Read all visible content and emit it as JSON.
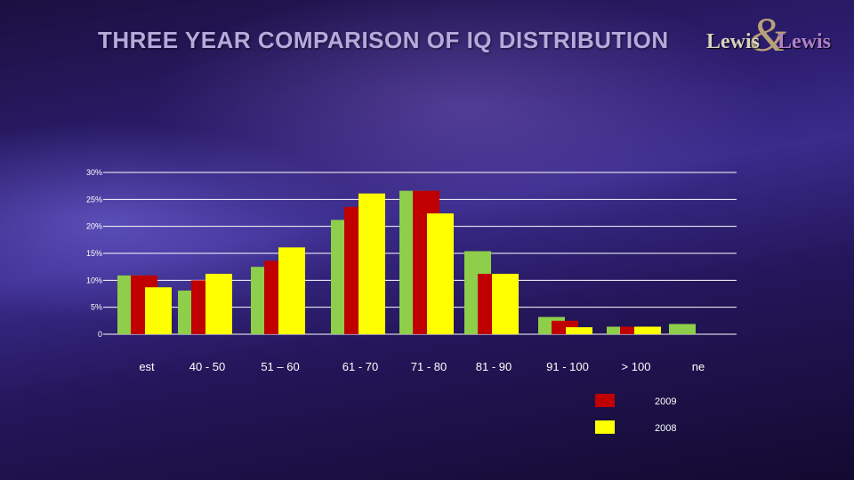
{
  "slide": {
    "title": "THREE YEAR COMPARISON OF IQ DISTRIBUTION",
    "logo": {
      "part1": "Lewis",
      "amp": "&",
      "part2": "Lewis"
    }
  },
  "colors": {
    "series_2010": "#8ece4a",
    "series_2009": "#c00000",
    "series_2008": "#ffff00",
    "gridline": "#ffffff"
  },
  "chart_data": {
    "type": "bar",
    "title": "",
    "xlabel": "",
    "ylabel": "",
    "ylim": [
      0,
      30
    ],
    "yticks": [
      {
        "value": 0,
        "label": "0"
      },
      {
        "value": 5,
        "label": "5%"
      },
      {
        "value": 10,
        "label": "10%"
      },
      {
        "value": 15,
        "label": "15%"
      },
      {
        "value": 20,
        "label": "20%"
      },
      {
        "value": 25,
        "label": "25%"
      },
      {
        "value": 30,
        "label": "30%"
      }
    ],
    "grid": true,
    "legend_position": "bottom-right",
    "categories": [
      "est",
      "40 - 50",
      "51 – 60",
      "61 - 70",
      "71 - 80",
      "81 - 90",
      "91 - 100",
      "> 100",
      "ne"
    ],
    "series": [
      {
        "key": "g",
        "color": "#8ece4a",
        "values": [
          10.9,
          8.1,
          12.5,
          21.2,
          26.6,
          15.4,
          3.2,
          1.4,
          1.9
        ]
      },
      {
        "key": "r",
        "name": "2009",
        "color": "#c00000",
        "values": [
          10.9,
          10.0,
          13.6,
          23.6,
          26.6,
          11.2,
          2.5,
          1.4,
          null
        ]
      },
      {
        "key": "y",
        "name": "2008",
        "color": "#ffff00",
        "values": [
          8.7,
          11.2,
          16.1,
          26.1,
          22.4,
          11.2,
          1.3,
          1.4,
          null
        ]
      }
    ],
    "legend": [
      {
        "label": "2009",
        "color": "#c00000"
      },
      {
        "label": "2008",
        "color": "#ffff00"
      }
    ]
  }
}
